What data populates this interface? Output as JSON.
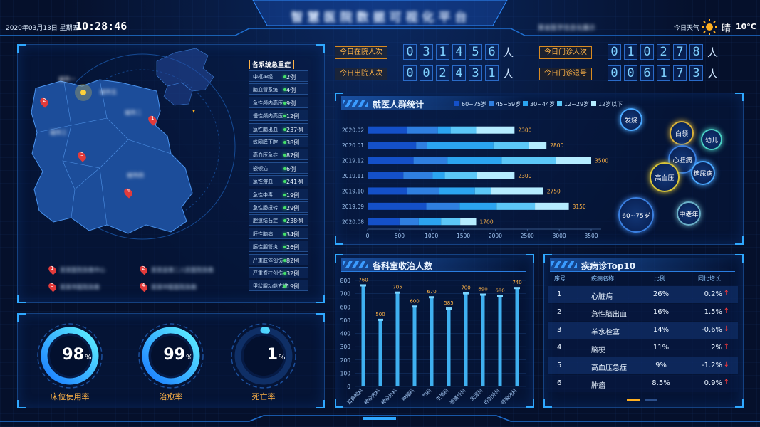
{
  "header": {
    "date": "2020年03月13日 星期五",
    "time": "10:28:46",
    "title": "智慧医院数据可视化平台",
    "org": "某省医学信息化展示",
    "weather_label": "今日天气",
    "weather": "晴",
    "temperature": "10°C",
    "weather_icon": "sun-icon"
  },
  "counters": [
    {
      "label": "今日在院人次",
      "digits": [
        "0",
        "3",
        "1",
        "4",
        "5",
        "6"
      ],
      "unit": "人"
    },
    {
      "label": "今日门诊人次",
      "digits": [
        "0",
        "1",
        "0",
        "2",
        "7",
        "8"
      ],
      "unit": "人"
    },
    {
      "label": "今日出院人次",
      "digits": [
        "0",
        "0",
        "2",
        "4",
        "3",
        "1"
      ],
      "unit": "人"
    },
    {
      "label": "今日门诊退号",
      "digits": [
        "0",
        "0",
        "6",
        "1",
        "7",
        "3"
      ],
      "unit": "人"
    }
  ],
  "map": {
    "cities": [
      "城市一",
      "城市二",
      "城市三",
      "城市四",
      "城市五"
    ],
    "legend": [
      {
        "num": "1",
        "text": "某某医院急救中心"
      },
      {
        "num": "2",
        "text": "某某县第二人民医院急救"
      },
      {
        "num": "3",
        "text": "某某市医院急救"
      },
      {
        "num": "4",
        "text": "某某中医医院急救"
      }
    ],
    "markers": [
      "1",
      "2",
      "3",
      "4"
    ]
  },
  "systems": {
    "title": "各系统急重症",
    "items": [
      {
        "name": "中枢神经",
        "value": "2例"
      },
      {
        "name": "脑血管系统",
        "value": "4例"
      },
      {
        "name": "急性颅内高压",
        "value": "9例"
      },
      {
        "name": "慢性颅内高压",
        "value": "12例"
      },
      {
        "name": "急性脑出血",
        "value": "237例"
      },
      {
        "name": "蛛网膜下腔",
        "value": "38例"
      },
      {
        "name": "高血压急症",
        "value": "87例"
      },
      {
        "name": "嵌顿疝",
        "value": "6例"
      },
      {
        "name": "急性溶血",
        "value": "241例"
      },
      {
        "name": "急性中毒",
        "value": "19例"
      },
      {
        "name": "急性肠扭转",
        "value": "29例"
      },
      {
        "name": "胆道结石症",
        "value": "238例"
      },
      {
        "name": "肝性脑病",
        "value": "34例"
      },
      {
        "name": "胰性胆管炎",
        "value": "26例"
      },
      {
        "name": "严重肢体创伤",
        "value": "82例"
      },
      {
        "name": "严重脊柱创伤",
        "value": "32例"
      },
      {
        "name": "甲状腺功能亢进",
        "value": "19例"
      }
    ]
  },
  "gauges": [
    {
      "value": "98",
      "pct": "%",
      "label": "床位使用率",
      "fill": 0.98
    },
    {
      "value": "99",
      "pct": "%",
      "label": "治愈率",
      "fill": 0.99
    },
    {
      "value": "1",
      "pct": "%",
      "label": "死亡率",
      "fill": 0.01
    }
  ],
  "crowd": {
    "title": "就医人群统计",
    "bubbles": [
      "发烧",
      "白领",
      "幼儿",
      "心脏病",
      "糖尿病",
      "高血压",
      "60~75岁",
      "中老年"
    ],
    "chart_data": {
      "type": "bar",
      "orientation": "horizontal",
      "stacked": true,
      "categories": [
        "2020.08",
        "2019.09",
        "2019.10",
        "2019.11",
        "2019.12",
        "2020.01",
        "2020.02"
      ],
      "series": [
        {
          "name": "60~75岁",
          "values": [
            500,
            920,
            620,
            560,
            720,
            760,
            620
          ],
          "color": "#1450c8"
        },
        {
          "name": "45~59岁",
          "values": [
            300,
            520,
            500,
            460,
            530,
            170,
            480
          ],
          "color": "#2f7fe0"
        },
        {
          "name": "30~44岁",
          "values": [
            350,
            580,
            560,
            190,
            850,
            1040,
            200
          ],
          "color": "#2ba4f0"
        },
        {
          "name": "12~29岁",
          "values": [
            300,
            600,
            250,
            500,
            850,
            560,
            400
          ],
          "color": "#5cc7f7"
        },
        {
          "name": "12岁以下",
          "values": [
            250,
            530,
            820,
            590,
            550,
            270,
            600
          ],
          "color": "#b5ecff"
        }
      ],
      "totals": [
        "1700",
        "3150",
        "2750",
        "2300",
        "3500",
        "2800",
        "2300"
      ],
      "xticks": [
        "0",
        "500",
        "1000",
        "1500",
        "2000",
        "2500",
        "3000",
        "3500"
      ],
      "xlim": [
        0,
        3500
      ],
      "legend": "top"
    }
  },
  "dept": {
    "title": "各科室收治人数",
    "chart_data": {
      "type": "bar",
      "categories": [
        "耳鼻喉科",
        "神经内科",
        "神经外科",
        "肿瘤科",
        "妇科",
        "生殖科",
        "普通外科",
        "风湿科",
        "肝胆外科",
        "呼吸内科"
      ],
      "values": [
        760,
        500,
        705,
        600,
        670,
        585,
        700,
        690,
        680,
        740
      ],
      "labels": [
        "760",
        "500",
        "705",
        "600",
        "670",
        "585",
        "700",
        "690",
        "680",
        "740"
      ],
      "yticks": [
        "0",
        "100",
        "200",
        "300",
        "400",
        "500",
        "600",
        "700",
        "800"
      ],
      "ylim": [
        0,
        800
      ]
    }
  },
  "top10": {
    "title": "疾病诊Top10",
    "columns": [
      "序号",
      "疾病名称",
      "比例",
      "同比增长"
    ],
    "rows": [
      {
        "no": "1",
        "name": "心脏病",
        "ratio": "26%",
        "growth": "0.2%",
        "dir": "↑"
      },
      {
        "no": "2",
        "name": "急性脑出血",
        "ratio": "16%",
        "growth": "1.5%",
        "dir": "↑"
      },
      {
        "no": "3",
        "name": "羊水栓塞",
        "ratio": "14%",
        "growth": "-0.6%",
        "dir": "↓"
      },
      {
        "no": "4",
        "name": "脑梗",
        "ratio": "11%",
        "growth": "2%",
        "dir": "↑"
      },
      {
        "no": "5",
        "name": "高血压急症",
        "ratio": "9%",
        "growth": "-1.2%",
        "dir": "↓"
      },
      {
        "no": "6",
        "name": "肿瘤",
        "ratio": "8.5%",
        "growth": "0.9%",
        "dir": "↑"
      }
    ]
  },
  "colors": {
    "accent": "#2fa8ff",
    "orange": "#ffb347",
    "green": "#45e06a",
    "red": "#ff3b3b"
  }
}
